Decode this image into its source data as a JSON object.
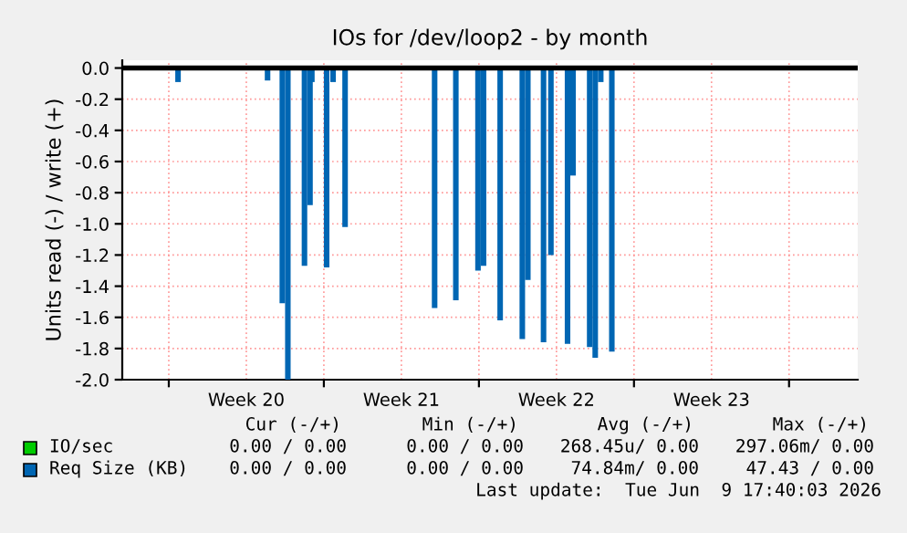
{
  "chart_data": {
    "type": "bar",
    "title": "IOs for /dev/loop2 - by month",
    "ylabel": "Units read (-) / write (+)",
    "x": [
      "2026-05-11T10:00",
      "2026-05-15T11:00",
      "2026-05-16T03:00",
      "2026-05-16T09:00",
      "2026-05-17T03:00",
      "2026-05-17T09:00",
      "2026-05-17T11:00",
      "2026-05-18T03:00",
      "2026-05-18T10:00",
      "2026-05-18T23:00",
      "2026-05-23T00:00",
      "2026-05-23T23:00",
      "2026-05-24T23:00",
      "2026-05-25T05:00",
      "2026-05-25T23:00",
      "2026-05-26T23:00",
      "2026-05-27T05:00",
      "2026-05-27T22:00",
      "2026-05-28T06:00",
      "2026-05-29T00:00",
      "2026-05-29T06:00",
      "2026-05-30T00:00",
      "2026-05-30T06:00",
      "2026-05-30T12:00",
      "2026-05-31T00:00"
    ],
    "series": [
      {
        "name": "IO/sec",
        "color": "#00cc00",
        "values": [
          0,
          0,
          0,
          0,
          0,
          0,
          0,
          0,
          0,
          0,
          0,
          0,
          0,
          0,
          0,
          0,
          0,
          0,
          0,
          0,
          0,
          0,
          0,
          0,
          0
        ]
      },
      {
        "name": "Req Size (KB)",
        "color": "#0066b3",
        "values": [
          -0.09,
          -0.08,
          -1.51,
          -2.0,
          -1.27,
          -0.88,
          -0.09,
          -1.28,
          -0.09,
          -1.02,
          -1.54,
          -1.49,
          -1.3,
          -1.27,
          -1.62,
          -1.74,
          -1.36,
          -1.76,
          -1.2,
          -1.77,
          -0.69,
          -1.79,
          -1.86,
          -0.09,
          -1.82
        ]
      }
    ],
    "xlim": [
      "2026-05-08T21:36",
      "2026-06-11T02:24"
    ],
    "xticks": [
      {
        "value": "2026-05-11",
        "label": null
      },
      {
        "value": "2026-05-14T12:00",
        "label": "Week 20"
      },
      {
        "value": "2026-05-18",
        "label": null
      },
      {
        "value": "2026-05-21T12:00",
        "label": "Week 21"
      },
      {
        "value": "2026-05-25",
        "label": null
      },
      {
        "value": "2026-05-28T12:00",
        "label": "Week 22"
      },
      {
        "value": "2026-06-01",
        "label": null
      },
      {
        "value": "2026-06-04T12:00",
        "label": "Week 23"
      },
      {
        "value": "2026-06-08",
        "label": null
      }
    ],
    "ylim": [
      -2.0,
      0.05
    ],
    "yticks": [
      {
        "value": -2.0,
        "label": "-2.0"
      },
      -1.8,
      -1.6,
      -1.4,
      -1.2,
      {
        "value": -1.0,
        "label": "-1.0"
      },
      -0.8,
      -0.6,
      -0.4,
      -0.2,
      {
        "value": 0,
        "label": "0.0"
      }
    ],
    "ref_lines": [
      {
        "axis": "y",
        "value": 0,
        "color": "#000000"
      }
    ],
    "grid": true,
    "legend": "bottom",
    "annotations": [
      "Cur (-/+)",
      "Min (-/+)",
      "Avg (-/+)",
      "Max (-/+)",
      "0.00 / 0.00",
      "0.00 / 0.00",
      "268.45u/ 0.00",
      "297.06m/ 0.00",
      "0.00 / 0.00",
      "0.00 / 0.00",
      "74.84m/ 0.00",
      "47.43 / 0.00",
      "Last update:  Tue Jun  9 17:40:03 2026"
    ]
  }
}
